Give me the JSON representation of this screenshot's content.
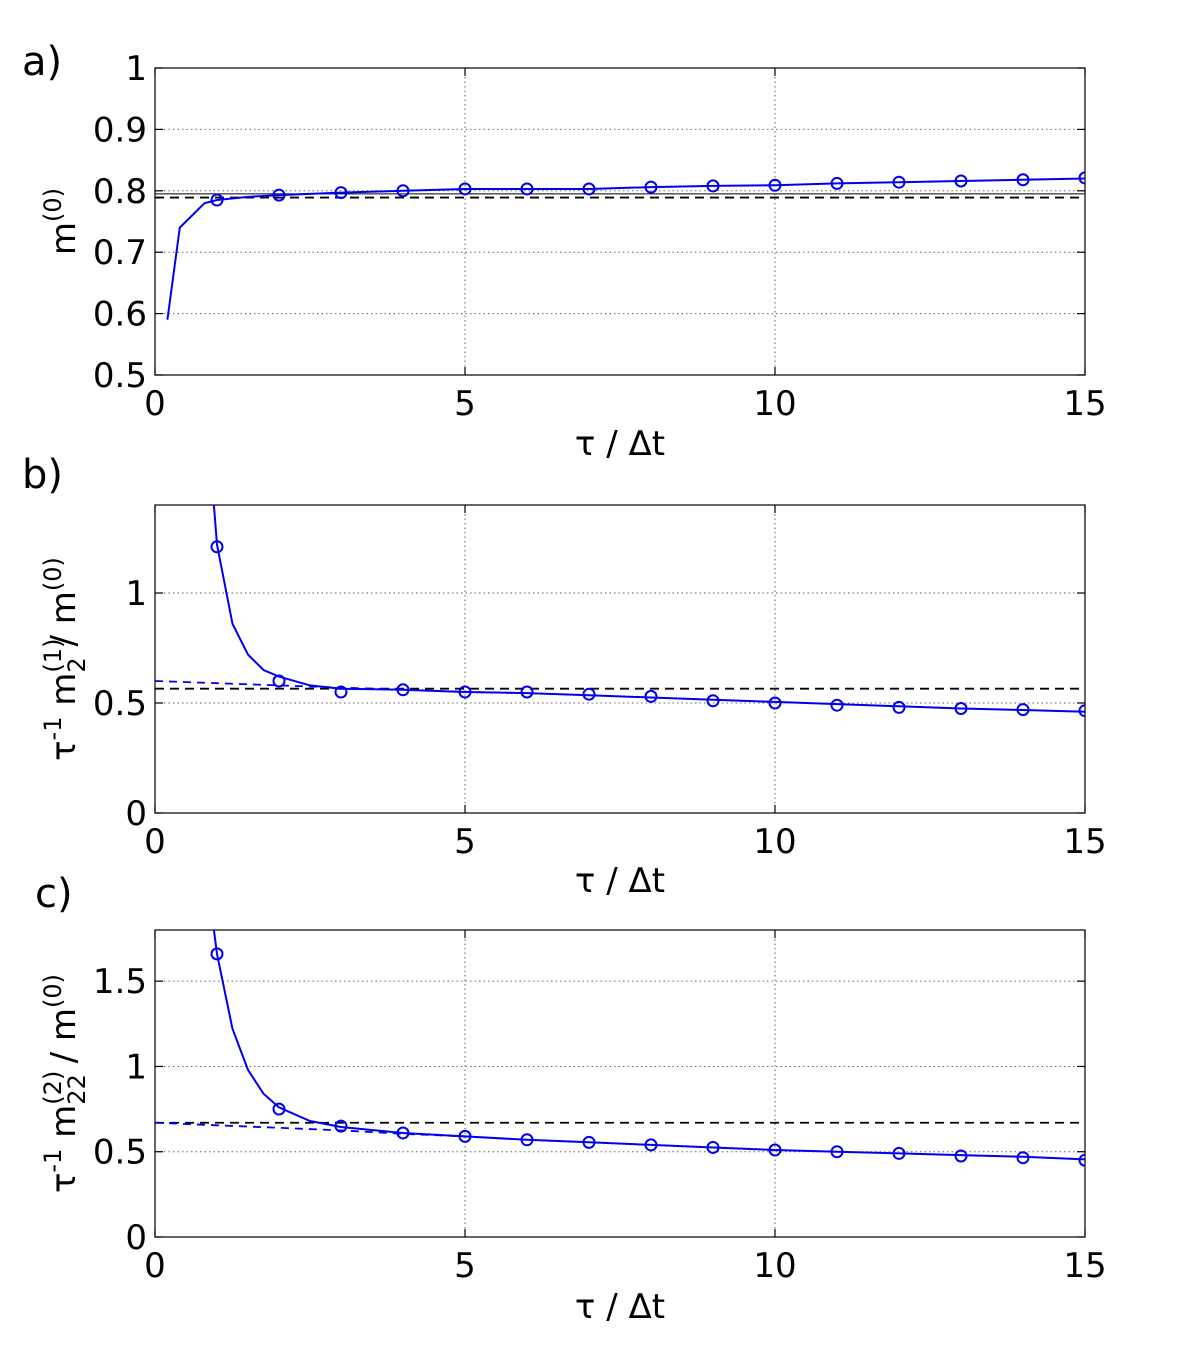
{
  "chart_data": [
    {
      "type": "line",
      "panel_label": "a)",
      "xlabel": "τ / Δt",
      "ylabel_parts": [
        "m",
        "(0)"
      ],
      "xlim": [
        0,
        15
      ],
      "ylim": [
        0.5,
        1
      ],
      "xticks": [
        0,
        5,
        10,
        15
      ],
      "yticks": [
        0.5,
        0.6,
        0.7,
        0.8,
        0.9,
        1
      ],
      "ytick_labels": [
        "0.5",
        "0.6",
        "0.7",
        "0.8",
        "0.9",
        "1"
      ],
      "grid": true,
      "series": [
        {
          "name": "curve",
          "style": "solid",
          "x": [
            0.2,
            0.4,
            0.6,
            0.8,
            1,
            1.5,
            2,
            3,
            4,
            5,
            6,
            7,
            8,
            9,
            10,
            11,
            12,
            13,
            14,
            15
          ],
          "y": [
            0.59,
            0.74,
            0.76,
            0.78,
            0.785,
            0.79,
            0.793,
            0.797,
            0.8,
            0.803,
            0.803,
            0.803,
            0.806,
            0.808,
            0.809,
            0.812,
            0.814,
            0.816,
            0.818,
            0.82
          ]
        },
        {
          "name": "points",
          "style": "markers",
          "x": [
            1,
            2,
            3,
            4,
            5,
            6,
            7,
            8,
            9,
            10,
            11,
            12,
            13,
            14,
            15
          ],
          "y": [
            0.785,
            0.793,
            0.797,
            0.8,
            0.803,
            0.803,
            0.803,
            0.806,
            0.808,
            0.809,
            0.812,
            0.814,
            0.816,
            0.818,
            0.821
          ]
        }
      ],
      "reference_lines": [
        {
          "name": "reference-dashed",
          "style": "dashed",
          "y": 0.789
        },
        {
          "name": "reference-thin",
          "style": "solid-thin",
          "y": 0.795
        }
      ]
    },
    {
      "type": "line",
      "panel_label": "b)",
      "xlabel": "τ / Δt",
      "ylabel_parts": [
        "τ",
        "-1",
        " m",
        "(1)",
        "2",
        " / m",
        "(0)"
      ],
      "xlim": [
        0,
        15
      ],
      "ylim": [
        0,
        1.4
      ],
      "xticks": [
        0,
        5,
        10,
        15
      ],
      "yticks": [
        0,
        0.5,
        1
      ],
      "ytick_labels": [
        "0",
        "0.5",
        "1"
      ],
      "grid": true,
      "series": [
        {
          "name": "curve",
          "style": "solid",
          "x": [
            0.95,
            1,
            1.25,
            1.5,
            1.75,
            2,
            2.5,
            3,
            4,
            5,
            6,
            7,
            8,
            9,
            10,
            11,
            12,
            13,
            14,
            15
          ],
          "y": [
            1.4,
            1.22,
            0.86,
            0.72,
            0.65,
            0.62,
            0.58,
            0.565,
            0.56,
            0.55,
            0.545,
            0.535,
            0.525,
            0.515,
            0.505,
            0.495,
            0.485,
            0.475,
            0.468,
            0.46
          ]
        },
        {
          "name": "extrapolation",
          "style": "dashed",
          "x": [
            0,
            1,
            2,
            3,
            4,
            5,
            6
          ],
          "y": [
            0.6,
            0.59,
            0.58,
            0.57,
            0.56,
            0.55,
            0.545
          ]
        },
        {
          "name": "points",
          "style": "markers",
          "x": [
            1,
            2,
            3,
            4,
            5,
            6,
            7,
            8,
            9,
            10,
            11,
            12,
            13,
            14,
            15
          ],
          "y": [
            1.21,
            0.6,
            0.55,
            0.56,
            0.55,
            0.55,
            0.54,
            0.53,
            0.51,
            0.5,
            0.49,
            0.48,
            0.475,
            0.47,
            0.465
          ]
        }
      ],
      "reference_lines": [
        {
          "name": "reference-dashed",
          "style": "dashed",
          "y": 0.565
        }
      ]
    },
    {
      "type": "line",
      "panel_label": "c)",
      "xlabel": "τ / Δt",
      "ylabel_parts": [
        "τ",
        "-1",
        " m",
        "(2)",
        "22",
        " / m",
        "(0)"
      ],
      "xlim": [
        0,
        15
      ],
      "ylim": [
        0,
        1.8
      ],
      "xticks": [
        0,
        5,
        10,
        15
      ],
      "yticks": [
        0,
        0.5,
        1,
        1.5
      ],
      "ytick_labels": [
        "0",
        "0.5",
        "1",
        "1.5"
      ],
      "grid": true,
      "series": [
        {
          "name": "curve",
          "style": "solid",
          "x": [
            0.95,
            1,
            1.25,
            1.5,
            1.75,
            2,
            2.5,
            3,
            4,
            5,
            6,
            7,
            8,
            9,
            10,
            11,
            12,
            13,
            14,
            15
          ],
          "y": [
            1.8,
            1.66,
            1.22,
            0.98,
            0.84,
            0.76,
            0.68,
            0.645,
            0.61,
            0.59,
            0.57,
            0.555,
            0.54,
            0.525,
            0.51,
            0.5,
            0.49,
            0.48,
            0.47,
            0.455
          ]
        },
        {
          "name": "extrapolation",
          "style": "dashed",
          "x": [
            0,
            1,
            2,
            3,
            4,
            5
          ],
          "y": [
            0.67,
            0.655,
            0.64,
            0.625,
            0.605,
            0.59
          ]
        },
        {
          "name": "points",
          "style": "markers",
          "x": [
            1,
            2,
            3,
            4,
            5,
            6,
            7,
            8,
            9,
            10,
            11,
            12,
            13,
            14,
            15
          ],
          "y": [
            1.66,
            0.75,
            0.65,
            0.61,
            0.59,
            0.57,
            0.555,
            0.54,
            0.525,
            0.51,
            0.5,
            0.49,
            0.475,
            0.465,
            0.45
          ]
        }
      ],
      "reference_lines": [
        {
          "name": "reference-dashed",
          "style": "dashed",
          "y": 0.67
        }
      ]
    }
  ]
}
